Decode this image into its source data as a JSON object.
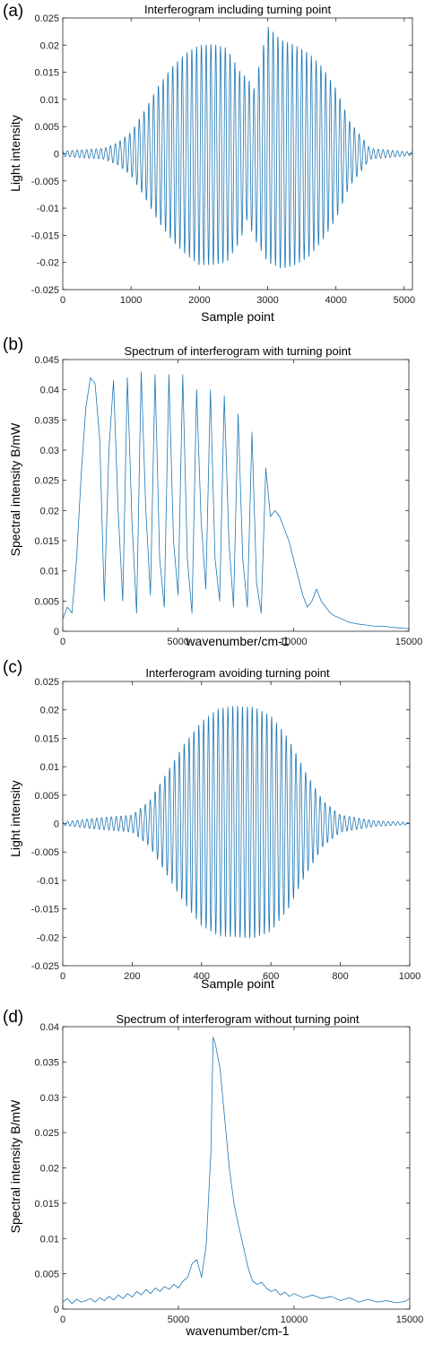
{
  "colors": {
    "line": "#1f77b4",
    "axis": "#262626",
    "background": "#ffffff"
  },
  "chart_data": [
    {
      "panel_label": "(a)",
      "type": "line",
      "title": "Interferogram including turning point",
      "xlabel": "Sample point",
      "ylabel": "Light intensity",
      "xlim": [
        0,
        5120
      ],
      "ylim": [
        -0.025,
        0.025
      ],
      "xticks": [
        "0",
        "1000",
        "2000",
        "3000",
        "4000",
        "5000"
      ],
      "yticks": [
        "0.025",
        "0.02",
        "0.015",
        "0.01",
        "0.005",
        "0",
        "-0.005",
        "-0.01",
        "-0.015",
        "-0.02",
        "-0.025"
      ],
      "grid": false,
      "series": [
        {
          "envelope": {
            "x": [
              0,
              600,
              800,
              1000,
              1200,
              1400,
              1600,
              1800,
              2000,
              2200,
              2400,
              2600,
              2700,
              2800,
              3000,
              3200,
              3400,
              3600,
              3800,
              4000,
              4200,
              4500,
              5120
            ],
            "upper": [
              0.0005,
              0.001,
              0.002,
              0.004,
              0.008,
              0.0125,
              0.016,
              0.0185,
              0.02,
              0.0202,
              0.0195,
              0.015,
              0.014,
              0.012,
              0.0235,
              0.021,
              0.02,
              0.0185,
              0.016,
              0.012,
              0.006,
              0.001,
              0.0003
            ],
            "lower": [
              -0.0005,
              -0.001,
              -0.002,
              -0.004,
              -0.008,
              -0.0125,
              -0.016,
              -0.0185,
              -0.0205,
              -0.0205,
              -0.02,
              -0.016,
              -0.012,
              -0.0155,
              -0.02,
              -0.0212,
              -0.0205,
              -0.019,
              -0.016,
              -0.012,
              -0.006,
              -0.001,
              -0.0003
            ]
          },
          "fringe_period": 70
        }
      ]
    },
    {
      "panel_label": "(b)",
      "type": "line",
      "title": "Spectrum of interferogram with turning point",
      "xlabel": "wavenumber/cm-1",
      "ylabel": "Spectral intensity B/mW",
      "xlim": [
        0,
        15000
      ],
      "ylim": [
        0,
        0.045
      ],
      "xticks": [
        "0",
        "5000",
        "10000",
        "15000"
      ],
      "yticks": [
        "0.045",
        "0.04",
        "0.035",
        "0.03",
        "0.025",
        "0.02",
        "0.015",
        "0.01",
        "0.005",
        "0"
      ],
      "grid": false,
      "series": [
        {
          "x": [
            0,
            200,
            400,
            600,
            800,
            1000,
            1200,
            1400,
            1600,
            1800,
            2000,
            2200,
            2400,
            2600,
            2800,
            3000,
            3200,
            3400,
            3600,
            3800,
            4000,
            4200,
            4400,
            4600,
            4800,
            5000,
            5200,
            5400,
            5600,
            5800,
            6000,
            6200,
            6400,
            6600,
            6800,
            7000,
            7200,
            7400,
            7600,
            7800,
            8000,
            8200,
            8400,
            8600,
            8800,
            9000,
            9200,
            9400,
            9600,
            9800,
            10000,
            10200,
            10400,
            10600,
            10800,
            11000,
            11200,
            11400,
            11600,
            11800,
            12000,
            12400,
            12800,
            13200,
            13600,
            14000,
            14400,
            14800,
            15000
          ],
          "y": [
            0.002,
            0.004,
            0.003,
            0.012,
            0.026,
            0.037,
            0.042,
            0.041,
            0.032,
            0.005,
            0.03,
            0.0415,
            0.02,
            0.005,
            0.042,
            0.018,
            0.003,
            0.043,
            0.02,
            0.006,
            0.0425,
            0.012,
            0.004,
            0.0425,
            0.015,
            0.006,
            0.0425,
            0.012,
            0.003,
            0.04,
            0.018,
            0.007,
            0.04,
            0.012,
            0.005,
            0.039,
            0.015,
            0.004,
            0.036,
            0.012,
            0.004,
            0.033,
            0.008,
            0.003,
            0.027,
            0.019,
            0.02,
            0.019,
            0.017,
            0.015,
            0.012,
            0.009,
            0.006,
            0.004,
            0.005,
            0.007,
            0.005,
            0.004,
            0.003,
            0.0025,
            0.0022,
            0.0015,
            0.0012,
            0.001,
            0.0008,
            0.0008,
            0.0006,
            0.0005,
            0.0004
          ]
        }
      ]
    },
    {
      "panel_label": "(c)",
      "type": "line",
      "title": "Interferogram avoiding turning point",
      "xlabel": "Sample point",
      "ylabel": "Light intensity",
      "xlim": [
        0,
        1000
      ],
      "ylim": [
        -0.025,
        0.025
      ],
      "xticks": [
        "0",
        "200",
        "400",
        "600",
        "800",
        "1000"
      ],
      "yticks": [
        "0.025",
        "0.02",
        "0.015",
        "0.01",
        "0.005",
        "0",
        "-0.005",
        "-0.01",
        "-0.015",
        "-0.02",
        "-0.025"
      ],
      "grid": false,
      "series": [
        {
          "envelope": {
            "x": [
              0,
              100,
              200,
              250,
              300,
              350,
              400,
              450,
              500,
              550,
              600,
              650,
              700,
              750,
              800,
              900,
              1000
            ],
            "upper": [
              0.0003,
              0.001,
              0.0015,
              0.004,
              0.009,
              0.014,
              0.018,
              0.0203,
              0.0207,
              0.0205,
              0.019,
              0.015,
              0.009,
              0.004,
              0.0015,
              0.0005,
              0.0002
            ],
            "lower": [
              -0.0003,
              -0.001,
              -0.0015,
              -0.004,
              -0.009,
              -0.014,
              -0.018,
              -0.0198,
              -0.02,
              -0.0202,
              -0.019,
              -0.015,
              -0.009,
              -0.004,
              -0.0015,
              -0.0005,
              -0.0002
            ]
          },
          "fringe_period": 14
        }
      ]
    },
    {
      "panel_label": "(d)",
      "type": "line",
      "title": "Spectrum of interferogram without turning point",
      "xlabel": "wavenumber/cm-1",
      "ylabel": "Spectral intensity B/mW",
      "xlim": [
        0,
        15000
      ],
      "ylim": [
        0,
        0.04
      ],
      "xticks": [
        "0",
        "5000",
        "10000",
        "15000"
      ],
      "yticks": [
        "0.04",
        "0.035",
        "0.03",
        "0.025",
        "0.02",
        "0.015",
        "0.01",
        "0.005",
        "0"
      ],
      "grid": false,
      "series": [
        {
          "x": [
            0,
            200,
            400,
            600,
            800,
            1000,
            1200,
            1400,
            1600,
            1800,
            2000,
            2200,
            2400,
            2600,
            2800,
            3000,
            3200,
            3400,
            3600,
            3800,
            4000,
            4200,
            4400,
            4600,
            4800,
            5000,
            5200,
            5400,
            5600,
            5800,
            6000,
            6200,
            6400,
            6500,
            6600,
            6800,
            7000,
            7200,
            7400,
            7600,
            7800,
            8000,
            8200,
            8400,
            8600,
            8800,
            9000,
            9200,
            9400,
            9600,
            9800,
            10000,
            10400,
            10800,
            11200,
            11600,
            12000,
            12400,
            12800,
            13200,
            13600,
            14000,
            14400,
            14800,
            15000
          ],
          "y": [
            0.001,
            0.0015,
            0.0008,
            0.0014,
            0.001,
            0.0012,
            0.0015,
            0.001,
            0.0016,
            0.0012,
            0.0018,
            0.0013,
            0.002,
            0.0015,
            0.0022,
            0.0017,
            0.0025,
            0.002,
            0.0028,
            0.0022,
            0.003,
            0.0025,
            0.0032,
            0.0028,
            0.0035,
            0.003,
            0.004,
            0.0045,
            0.0065,
            0.007,
            0.0045,
            0.009,
            0.022,
            0.0385,
            0.0375,
            0.034,
            0.027,
            0.02,
            0.015,
            0.0118,
            0.009,
            0.006,
            0.004,
            0.0035,
            0.0038,
            0.003,
            0.0025,
            0.0028,
            0.002,
            0.0024,
            0.0018,
            0.0022,
            0.0016,
            0.002,
            0.0015,
            0.0018,
            0.0012,
            0.0016,
            0.001,
            0.0014,
            0.001,
            0.0012,
            0.0009,
            0.0011,
            0.0015
          ]
        }
      ]
    }
  ]
}
